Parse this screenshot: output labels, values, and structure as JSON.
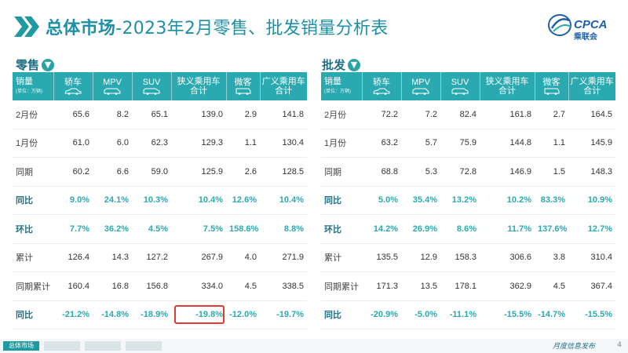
{
  "header": {
    "title_strong": "总体市场",
    "title_rest": "-2023年2月零售、批发销量分析表",
    "logo_text": "CPCA",
    "logo_subtitle": "乘联会"
  },
  "columns": [
    "轿车",
    "MPV",
    "SUV",
    "狭义乘用车\n合计",
    "微客",
    "广义乘用车\n合计"
  ],
  "corner_label": "销量",
  "corner_sublabel": "(单位：万辆)",
  "retail": {
    "label": "零售",
    "rows": [
      {
        "label": "2月份",
        "values": [
          "65.6",
          "8.2",
          "65.1",
          "139.0",
          "2.9",
          "141.8"
        ],
        "highlight": false
      },
      {
        "label": "1月份",
        "values": [
          "61.0",
          "6.0",
          "62.3",
          "129.3",
          "1.1",
          "130.4"
        ],
        "highlight": false
      },
      {
        "label": "同期",
        "values": [
          "60.2",
          "6.6",
          "59.0",
          "125.9",
          "2.6",
          "128.5"
        ],
        "highlight": false
      },
      {
        "label": "同比",
        "values": [
          "9.0%",
          "24.1%",
          "10.3%",
          "10.4%",
          "12.6%",
          "10.4%"
        ],
        "highlight": true
      },
      {
        "label": "环比",
        "values": [
          "7.7%",
          "36.2%",
          "4.5%",
          "7.5%",
          "158.6%",
          "8.8%"
        ],
        "highlight": true
      },
      {
        "label": "累计",
        "values": [
          "126.4",
          "14.3",
          "127.2",
          "267.9",
          "4.0",
          "271.9"
        ],
        "highlight": false
      },
      {
        "label": "同期累计",
        "values": [
          "160.4",
          "16.8",
          "156.8",
          "334.0",
          "4.5",
          "338.5"
        ],
        "highlight": false
      },
      {
        "label": "同比",
        "values": [
          "-21.2%",
          "-14.8%",
          "-18.9%",
          "-19.8%",
          "-12.0%",
          "-19.7%"
        ],
        "highlight": true
      }
    ]
  },
  "wholesale": {
    "label": "批发",
    "rows": [
      {
        "label": "2月份",
        "values": [
          "72.2",
          "7.2",
          "82.4",
          "161.8",
          "2.7",
          "164.5"
        ],
        "highlight": false
      },
      {
        "label": "1月份",
        "values": [
          "63.2",
          "5.7",
          "75.9",
          "144.8",
          "1.1",
          "145.9"
        ],
        "highlight": false
      },
      {
        "label": "同期",
        "values": [
          "68.8",
          "5.3",
          "72.8",
          "146.9",
          "1.5",
          "148.3"
        ],
        "highlight": false
      },
      {
        "label": "同比",
        "values": [
          "5.0%",
          "35.4%",
          "13.2%",
          "10.2%",
          "83.3%",
          "10.9%"
        ],
        "highlight": true
      },
      {
        "label": "环比",
        "values": [
          "14.2%",
          "26.9%",
          "8.6%",
          "11.7%",
          "137.6%",
          "12.7%"
        ],
        "highlight": true
      },
      {
        "label": "累计",
        "values": [
          "135.5",
          "12.9",
          "158.3",
          "306.6",
          "3.8",
          "310.4"
        ],
        "highlight": false
      },
      {
        "label": "同期累计",
        "values": [
          "171.3",
          "13.5",
          "178.1",
          "362.9",
          "4.5",
          "367.4"
        ],
        "highlight": false
      },
      {
        "label": "同比",
        "values": [
          "-20.9%",
          "-5.0%",
          "-11.1%",
          "-15.5%",
          "-14.7%",
          "-15.5%"
        ],
        "highlight": true
      }
    ]
  },
  "highlighted_cell": {
    "table": "retail",
    "row": 7,
    "col": 3,
    "value": "-19.8%"
  },
  "footer": {
    "active_tab": "总体市场",
    "note": "月度信息发布",
    "page_number": "4"
  },
  "colors": {
    "accent": "#2aaab0",
    "title": "#1e8fa8",
    "highlight_box": "#e53935"
  }
}
